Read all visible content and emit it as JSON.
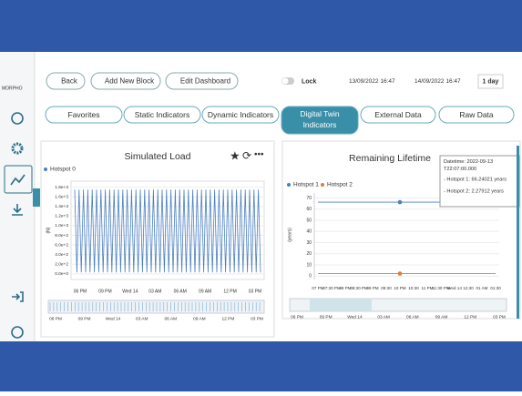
{
  "sidebar": {
    "logo": "MORPHO"
  },
  "toolbar": {
    "back": "Back",
    "add_block": "Add New Block",
    "edit_dashboard": "Edit Dashboard",
    "lock": "Lock",
    "start": "13/09/2022 16:47",
    "end": "14/09/2022 16:47",
    "range": "1 day"
  },
  "tabs": [
    "Favorites",
    "Static Indicators",
    "Dynamic Indicators",
    "Digital Twin Indicators",
    "External Data",
    "Raw Data"
  ],
  "panels": [
    {
      "title": "Simulated Load",
      "legend": [
        "Hotspot 0"
      ],
      "chart": {
        "type": "line",
        "ylabel": "(N)",
        "color": "#4a7fc1",
        "ylim": [
          -40,
          1850
        ],
        "yticks": [
          {
            "value": 0,
            "label": "0.0e+0"
          },
          {
            "value": 200,
            "label": "2.0e+2"
          },
          {
            "value": 400,
            "label": "4.0e+2"
          },
          {
            "value": 600,
            "label": "6.0e+2"
          },
          {
            "value": 800,
            "label": "8.0e+2"
          },
          {
            "value": 1000,
            "label": "1.0e+3"
          },
          {
            "value": 1200,
            "label": "1.2e+3"
          },
          {
            "value": 1400,
            "label": "1.4e+3"
          },
          {
            "value": 1600,
            "label": "1.6e+3"
          },
          {
            "value": 1800,
            "label": "1.8e+3"
          }
        ],
        "xtick_labels": [
          "06 PM",
          "09 PM",
          "Wed 14",
          "03 AM",
          "06 AM",
          "09 AM",
          "12 PM",
          "03 PM"
        ],
        "values": [
          1750,
          30,
          1750,
          30,
          1750,
          30,
          1750,
          30,
          1750,
          30,
          1750,
          30,
          1750,
          30,
          1750,
          30,
          1750,
          30,
          1750,
          30,
          1750,
          30,
          1750,
          30,
          1750,
          30,
          1750,
          30,
          1750,
          30,
          1750,
          30,
          1750,
          30,
          1750,
          30,
          1750,
          30,
          1750,
          30,
          1750,
          30,
          1750,
          30,
          1750,
          30,
          1750,
          30,
          1750,
          30,
          1750,
          30,
          1750,
          30,
          1750,
          30,
          1750,
          30,
          1750,
          30,
          1750,
          30,
          1750,
          30,
          1750,
          30,
          1750,
          30,
          1750,
          30,
          1750,
          30,
          1750,
          30,
          1750,
          30,
          1750,
          30,
          1750,
          30,
          1750,
          30,
          1750,
          30,
          1750,
          30
        ],
        "navigator_labels": [
          "06 PM",
          "09 PM",
          "Wed 14",
          "03 AM",
          "06 AM",
          "09 AM",
          "12 PM",
          "03 PM"
        ]
      }
    },
    {
      "title": "Remaining Lifetime",
      "chart": {
        "type": "line",
        "ylabel": "(years)",
        "ylim": [
          -3,
          72
        ],
        "yticks": [
          0,
          10,
          20,
          30,
          40,
          50,
          60,
          70
        ],
        "x": [
          "07 PM",
          "07:30 PM",
          "08 PM",
          "08:30 PM",
          "09 PM",
          "09:30",
          "10 PM",
          "10:30",
          "11 PM",
          "11:30 PM",
          "Wed 14",
          "12:30",
          "01 AM",
          "01:30"
        ],
        "marker_category": "10 PM",
        "series": [
          {
            "name": "Hotspot 1",
            "color": "#4a7fc1",
            "values": [
              66.24021,
              66.24021,
              66.24021,
              66.24021,
              66.24021,
              66.24021,
              66.24021,
              66.24021,
              66.24021,
              66.24021,
              66.24021,
              66.24021,
              66.24021,
              66.24021
            ]
          },
          {
            "name": "Hotspot 2",
            "color": "#e07b39",
            "values": [
              2.27912,
              2.27912,
              2.27912,
              2.27912,
              2.27912,
              2.27912,
              2.27912,
              2.27912,
              2.27912,
              2.27912,
              2.27912,
              2.27912,
              2.27912,
              2.27912
            ]
          }
        ],
        "tooltip": [
          "Datetime: 2022-09-13T22:07:00.000",
          "- Hotspot 1: 66.24021 years",
          "- Hotspot 2: 2.27912 years"
        ],
        "navigator_labels": [
          "06 PM",
          "09 PM",
          "Wed 14",
          "03 AM",
          "06 AM",
          "09 AM",
          "12 PM",
          "03 PM"
        ]
      }
    }
  ]
}
